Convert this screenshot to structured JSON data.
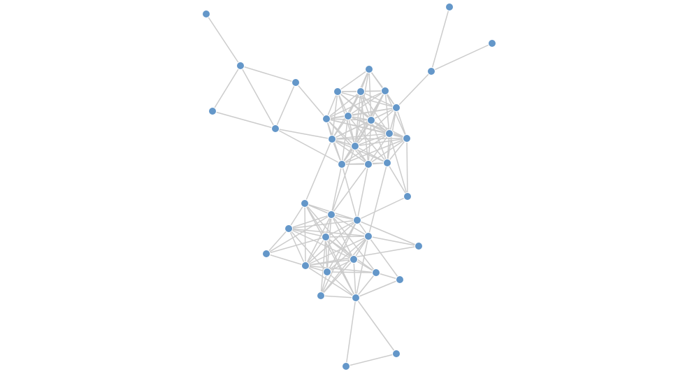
{
  "graph": {
    "node_count": 41,
    "node_color": "#6497c9",
    "edge_color": "#cccccc",
    "edges": [
      [
        0,
        1
      ],
      [
        1,
        2
      ],
      [
        1,
        3
      ],
      [
        1,
        4
      ],
      [
        2,
        4
      ],
      [
        3,
        4
      ],
      [
        3,
        13
      ],
      [
        4,
        18
      ],
      [
        4,
        20
      ],
      [
        5,
        7
      ],
      [
        6,
        7
      ],
      [
        7,
        12
      ],
      [
        8,
        9
      ],
      [
        8,
        10
      ],
      [
        8,
        11
      ],
      [
        8,
        12
      ],
      [
        8,
        14
      ],
      [
        8,
        15
      ],
      [
        8,
        19
      ],
      [
        9,
        10
      ],
      [
        9,
        11
      ],
      [
        9,
        13
      ],
      [
        9,
        14
      ],
      [
        9,
        15
      ],
      [
        9,
        16
      ],
      [
        9,
        18
      ],
      [
        9,
        19
      ],
      [
        9,
        12
      ],
      [
        10,
        11
      ],
      [
        10,
        12
      ],
      [
        10,
        13
      ],
      [
        10,
        14
      ],
      [
        10,
        15
      ],
      [
        10,
        16
      ],
      [
        10,
        18
      ],
      [
        10,
        19
      ],
      [
        10,
        21
      ],
      [
        11,
        12
      ],
      [
        11,
        13
      ],
      [
        11,
        14
      ],
      [
        11,
        15
      ],
      [
        11,
        16
      ],
      [
        11,
        17
      ],
      [
        11,
        19
      ],
      [
        11,
        20
      ],
      [
        12,
        13
      ],
      [
        12,
        14
      ],
      [
        12,
        15
      ],
      [
        12,
        16
      ],
      [
        12,
        17
      ],
      [
        12,
        18
      ],
      [
        12,
        19
      ],
      [
        12,
        22
      ],
      [
        13,
        14
      ],
      [
        13,
        15
      ],
      [
        13,
        16
      ],
      [
        13,
        17
      ],
      [
        13,
        18
      ],
      [
        13,
        19
      ],
      [
        13,
        20
      ],
      [
        13,
        21
      ],
      [
        14,
        15
      ],
      [
        14,
        16
      ],
      [
        14,
        17
      ],
      [
        14,
        18
      ],
      [
        14,
        19
      ],
      [
        14,
        20
      ],
      [
        14,
        22
      ],
      [
        15,
        16
      ],
      [
        15,
        17
      ],
      [
        15,
        18
      ],
      [
        15,
        19
      ],
      [
        15,
        20
      ],
      [
        15,
        21
      ],
      [
        15,
        22
      ],
      [
        16,
        17
      ],
      [
        16,
        18
      ],
      [
        16,
        19
      ],
      [
        16,
        20
      ],
      [
        16,
        21
      ],
      [
        16,
        22
      ],
      [
        17,
        18
      ],
      [
        17,
        19
      ],
      [
        17,
        20
      ],
      [
        17,
        21
      ],
      [
        17,
        22
      ],
      [
        17,
        23
      ],
      [
        18,
        19
      ],
      [
        18,
        20
      ],
      [
        18,
        21
      ],
      [
        18,
        22
      ],
      [
        18,
        24
      ],
      [
        19,
        20
      ],
      [
        19,
        21
      ],
      [
        19,
        22
      ],
      [
        19,
        25
      ],
      [
        20,
        21
      ],
      [
        20,
        22
      ],
      [
        20,
        25
      ],
      [
        20,
        26
      ],
      [
        21,
        22
      ],
      [
        21,
        26
      ],
      [
        21,
        25
      ],
      [
        22,
        23
      ],
      [
        22,
        29
      ],
      [
        16,
        23
      ],
      [
        23,
        26
      ],
      [
        24,
        25
      ],
      [
        24,
        26
      ],
      [
        24,
        27
      ],
      [
        24,
        28
      ],
      [
        24,
        33
      ],
      [
        24,
        32
      ],
      [
        24,
        38
      ],
      [
        25,
        26
      ],
      [
        25,
        27
      ],
      [
        25,
        28
      ],
      [
        25,
        29
      ],
      [
        25,
        31
      ],
      [
        25,
        32
      ],
      [
        25,
        33
      ],
      [
        25,
        34
      ],
      [
        25,
        35
      ],
      [
        26,
        27
      ],
      [
        26,
        28
      ],
      [
        26,
        29
      ],
      [
        26,
        30
      ],
      [
        26,
        33
      ],
      [
        26,
        34
      ],
      [
        26,
        37
      ],
      [
        27,
        28
      ],
      [
        27,
        29
      ],
      [
        27,
        31
      ],
      [
        27,
        33
      ],
      [
        27,
        34
      ],
      [
        27,
        32
      ],
      [
        28,
        29
      ],
      [
        28,
        31
      ],
      [
        28,
        32
      ],
      [
        28,
        33
      ],
      [
        28,
        34
      ],
      [
        28,
        35
      ],
      [
        28,
        38
      ],
      [
        28,
        37
      ],
      [
        29,
        30
      ],
      [
        29,
        32
      ],
      [
        29,
        33
      ],
      [
        29,
        34
      ],
      [
        29,
        36
      ],
      [
        29,
        37
      ],
      [
        29,
        38
      ],
      [
        30,
        33
      ],
      [
        31,
        33
      ],
      [
        32,
        33
      ],
      [
        32,
        34
      ],
      [
        32,
        35
      ],
      [
        32,
        37
      ],
      [
        32,
        38
      ],
      [
        33,
        34
      ],
      [
        33,
        35
      ],
      [
        33,
        38
      ],
      [
        34,
        35
      ],
      [
        34,
        38
      ],
      [
        34,
        37
      ],
      [
        35,
        36
      ],
      [
        35,
        38
      ],
      [
        36,
        38
      ],
      [
        37,
        38
      ],
      [
        38,
        39
      ],
      [
        38,
        40
      ],
      [
        39,
        40
      ]
    ]
  }
}
